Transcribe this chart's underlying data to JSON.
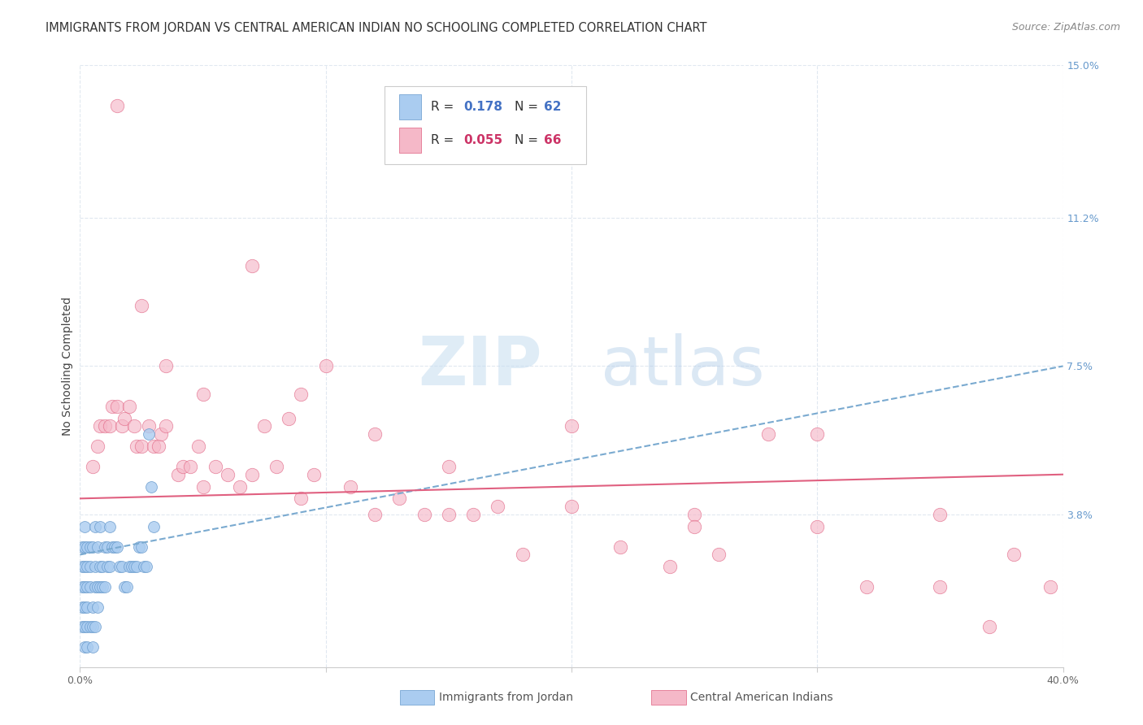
{
  "title": "IMMIGRANTS FROM JORDAN VS CENTRAL AMERICAN INDIAN NO SCHOOLING COMPLETED CORRELATION CHART",
  "source": "Source: ZipAtlas.com",
  "ylabel": "No Schooling Completed",
  "legend_label_blue": "Immigrants from Jordan",
  "legend_label_pink": "Central American Indians",
  "xlim": [
    0.0,
    0.4
  ],
  "ylim": [
    0.0,
    0.15
  ],
  "xticks": [
    0.0,
    0.1,
    0.2,
    0.3,
    0.4
  ],
  "xticklabels": [
    "0.0%",
    "",
    "",
    "",
    "40.0%"
  ],
  "ytick_right_vals": [
    0.0,
    0.038,
    0.075,
    0.112,
    0.15
  ],
  "ytick_right_labels": [
    "",
    "3.8%",
    "7.5%",
    "11.2%",
    "15.0%"
  ],
  "blue_scatter_x": [
    0.001,
    0.001,
    0.001,
    0.001,
    0.001,
    0.002,
    0.002,
    0.002,
    0.002,
    0.002,
    0.002,
    0.002,
    0.003,
    0.003,
    0.003,
    0.003,
    0.003,
    0.003,
    0.004,
    0.004,
    0.004,
    0.004,
    0.005,
    0.005,
    0.005,
    0.005,
    0.006,
    0.006,
    0.006,
    0.006,
    0.007,
    0.007,
    0.007,
    0.008,
    0.008,
    0.008,
    0.009,
    0.009,
    0.01,
    0.01,
    0.011,
    0.011,
    0.012,
    0.012,
    0.013,
    0.014,
    0.015,
    0.016,
    0.017,
    0.018,
    0.019,
    0.02,
    0.021,
    0.022,
    0.023,
    0.024,
    0.025,
    0.026,
    0.027,
    0.028,
    0.029,
    0.03
  ],
  "blue_scatter_y": [
    0.01,
    0.015,
    0.02,
    0.025,
    0.03,
    0.005,
    0.01,
    0.015,
    0.02,
    0.025,
    0.03,
    0.035,
    0.005,
    0.01,
    0.015,
    0.02,
    0.025,
    0.03,
    0.01,
    0.02,
    0.025,
    0.03,
    0.005,
    0.01,
    0.015,
    0.03,
    0.01,
    0.02,
    0.025,
    0.035,
    0.015,
    0.02,
    0.03,
    0.02,
    0.025,
    0.035,
    0.02,
    0.025,
    0.02,
    0.03,
    0.025,
    0.03,
    0.025,
    0.035,
    0.03,
    0.03,
    0.03,
    0.025,
    0.025,
    0.02,
    0.02,
    0.025,
    0.025,
    0.025,
    0.025,
    0.03,
    0.03,
    0.025,
    0.025,
    0.058,
    0.045,
    0.035
  ],
  "pink_scatter_x": [
    0.005,
    0.007,
    0.008,
    0.01,
    0.012,
    0.013,
    0.015,
    0.017,
    0.018,
    0.02,
    0.022,
    0.023,
    0.025,
    0.028,
    0.03,
    0.032,
    0.033,
    0.035,
    0.04,
    0.042,
    0.045,
    0.048,
    0.05,
    0.055,
    0.06,
    0.065,
    0.07,
    0.075,
    0.08,
    0.085,
    0.09,
    0.095,
    0.1,
    0.11,
    0.12,
    0.13,
    0.14,
    0.15,
    0.16,
    0.17,
    0.18,
    0.2,
    0.22,
    0.24,
    0.25,
    0.26,
    0.28,
    0.3,
    0.32,
    0.35,
    0.37,
    0.38,
    0.395,
    0.015,
    0.025,
    0.035,
    0.05,
    0.07,
    0.09,
    0.12,
    0.15,
    0.2,
    0.25,
    0.3,
    0.35
  ],
  "pink_scatter_y": [
    0.05,
    0.055,
    0.06,
    0.06,
    0.06,
    0.065,
    0.065,
    0.06,
    0.062,
    0.065,
    0.06,
    0.055,
    0.055,
    0.06,
    0.055,
    0.055,
    0.058,
    0.06,
    0.048,
    0.05,
    0.05,
    0.055,
    0.045,
    0.05,
    0.048,
    0.045,
    0.048,
    0.06,
    0.05,
    0.062,
    0.068,
    0.048,
    0.075,
    0.045,
    0.058,
    0.042,
    0.038,
    0.05,
    0.038,
    0.04,
    0.028,
    0.06,
    0.03,
    0.025,
    0.038,
    0.028,
    0.058,
    0.058,
    0.02,
    0.038,
    0.01,
    0.028,
    0.02,
    0.14,
    0.09,
    0.075,
    0.068,
    0.1,
    0.042,
    0.038,
    0.038,
    0.04,
    0.035,
    0.035,
    0.02
  ],
  "blue_line_x": [
    0.0,
    0.4
  ],
  "blue_line_y": [
    0.028,
    0.075
  ],
  "pink_line_x": [
    0.0,
    0.4
  ],
  "pink_line_y": [
    0.042,
    0.048
  ],
  "blue_color": "#aaccf0",
  "pink_color": "#f5b8c8",
  "blue_edge_color": "#6699cc",
  "pink_edge_color": "#e06080",
  "blue_line_color": "#7aaad0",
  "pink_line_color": "#e06080",
  "right_axis_color": "#6699cc",
  "grid_color": "#e0e8f0",
  "background_color": "#ffffff",
  "title_color": "#333333",
  "legend_r_color": "#333333",
  "legend_val_color_blue": "#4472c4",
  "legend_val_color_pink": "#cc3366"
}
